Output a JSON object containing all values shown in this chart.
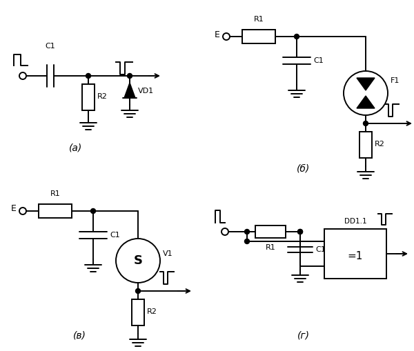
{
  "fig_width": 6.0,
  "fig_height": 5.09,
  "dpi": 100,
  "bg_color": "#ffffff",
  "lc": "#000000",
  "lw": 1.4,
  "labels": {
    "a": "(а)",
    "b": "(б)",
    "v": "(в)",
    "g": "(г)"
  }
}
